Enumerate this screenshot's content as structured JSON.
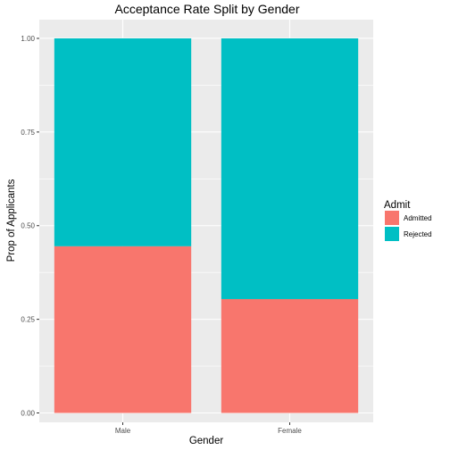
{
  "chart_data": {
    "type": "bar",
    "stacked": true,
    "title": "Acceptance Rate Split by Gender",
    "xlabel": "Gender",
    "ylabel": "Prop of Applicants",
    "categories": [
      "Male",
      "Female"
    ],
    "series": [
      {
        "name": "Admitted",
        "values": [
          0.445,
          0.304
        ],
        "color": "#F8766D"
      },
      {
        "name": "Rejected",
        "values": [
          0.555,
          0.696
        ],
        "color": "#00BFC4"
      }
    ],
    "yticks": [
      "0.00",
      "0.25",
      "0.50",
      "0.75",
      "1.00"
    ],
    "ytick_values": [
      0,
      0.25,
      0.5,
      0.75,
      1.0
    ],
    "ylim": [
      -0.025,
      1.05
    ],
    "legend": {
      "title": "Admit",
      "placement": "right"
    },
    "grid": true,
    "panel_background": "#EBEBEB",
    "grid_color": "#FFFFFF"
  }
}
